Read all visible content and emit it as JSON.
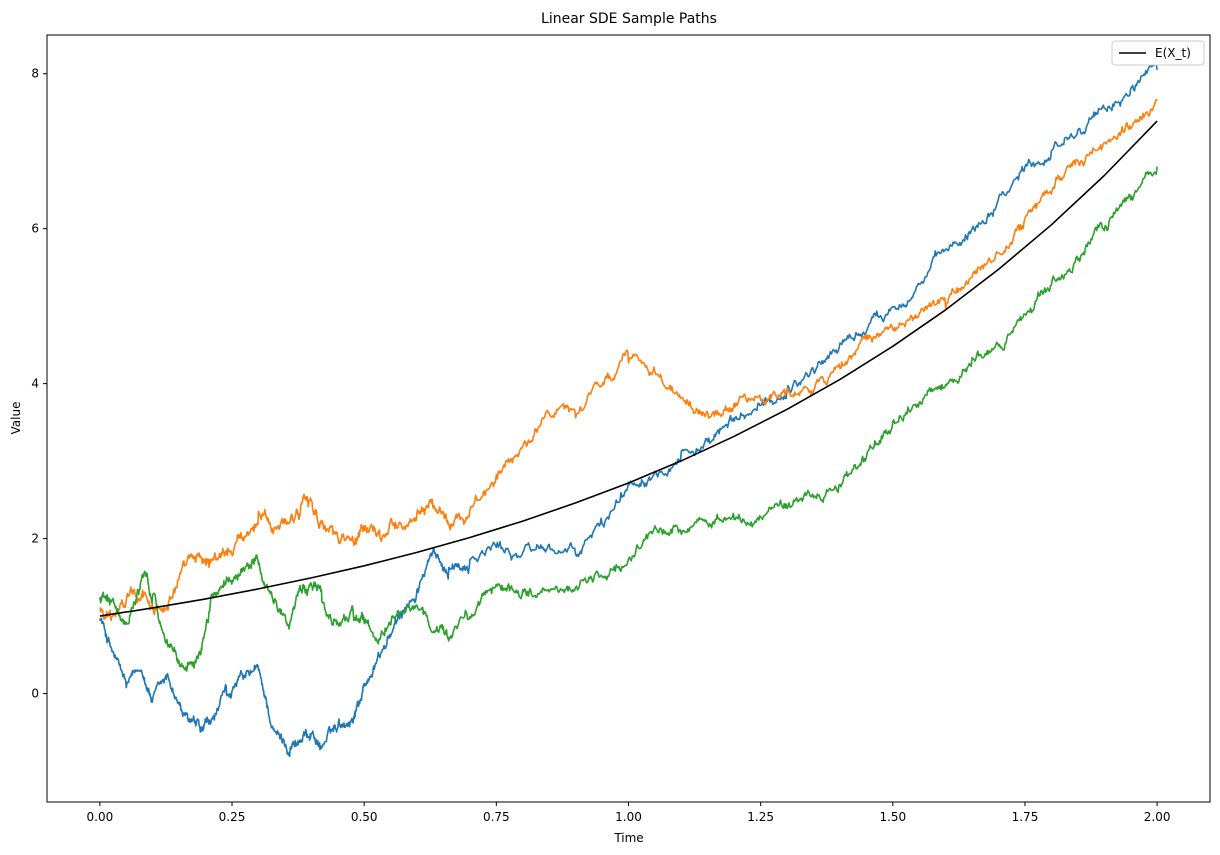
{
  "chart_data": {
    "type": "line",
    "title": "Linear SDE Sample Paths",
    "xlabel": "Time",
    "ylabel": "Value",
    "xlim": [
      -0.1,
      2.1
    ],
    "ylim": [
      -1.4,
      8.5
    ],
    "xticks": [
      0.0,
      0.25,
      0.5,
      0.75,
      1.0,
      1.25,
      1.5,
      1.75,
      2.0
    ],
    "xtick_labels": [
      "0.00",
      "0.25",
      "0.50",
      "0.75",
      "1.00",
      "1.25",
      "1.50",
      "1.75",
      "2.00"
    ],
    "yticks": [
      0,
      2,
      4,
      6,
      8
    ],
    "ytick_labels": [
      "0",
      "2",
      "4",
      "6",
      "8"
    ],
    "grid": false,
    "legend_position": "top-right",
    "series": [
      {
        "color": "#1f77b4",
        "style": "noisy",
        "x": [
          0.0,
          0.02,
          0.05,
          0.08,
          0.1,
          0.13,
          0.16,
          0.19,
          0.21,
          0.24,
          0.27,
          0.3,
          0.33,
          0.36,
          0.38,
          0.4,
          0.42,
          0.45,
          0.48,
          0.5,
          0.53,
          0.56,
          0.6,
          0.63,
          0.66,
          0.7,
          0.75,
          0.8,
          0.85,
          0.9,
          0.95,
          1.0,
          1.05,
          1.1,
          1.15,
          1.2,
          1.25,
          1.3,
          1.35,
          1.4,
          1.45,
          1.5,
          1.55,
          1.6,
          1.65,
          1.7,
          1.75,
          1.8,
          1.85,
          1.9,
          1.95,
          2.0
        ],
        "values": [
          1.0,
          0.6,
          0.1,
          0.3,
          -0.1,
          0.2,
          -0.3,
          -0.5,
          -0.4,
          0.0,
          0.2,
          0.3,
          -0.5,
          -0.7,
          -0.6,
          -0.5,
          -0.7,
          -0.4,
          -0.3,
          0.1,
          0.5,
          0.9,
          1.3,
          1.8,
          1.6,
          1.7,
          1.9,
          1.8,
          1.9,
          1.8,
          2.2,
          2.7,
          2.9,
          3.1,
          3.2,
          3.5,
          3.7,
          3.9,
          4.2,
          4.5,
          4.7,
          5.0,
          5.3,
          5.7,
          6.0,
          6.4,
          6.8,
          7.0,
          7.3,
          7.5,
          7.8,
          8.05
        ]
      },
      {
        "color": "#ff7f0e",
        "style": "noisy",
        "x": [
          0.0,
          0.02,
          0.05,
          0.08,
          0.1,
          0.13,
          0.16,
          0.19,
          0.21,
          0.24,
          0.27,
          0.3,
          0.33,
          0.36,
          0.38,
          0.4,
          0.42,
          0.45,
          0.48,
          0.5,
          0.53,
          0.56,
          0.6,
          0.63,
          0.66,
          0.7,
          0.75,
          0.8,
          0.85,
          0.9,
          0.95,
          1.0,
          1.05,
          1.1,
          1.15,
          1.2,
          1.25,
          1.3,
          1.35,
          1.4,
          1.45,
          1.5,
          1.55,
          1.6,
          1.65,
          1.7,
          1.75,
          1.8,
          1.85,
          1.9,
          1.95,
          2.0
        ],
        "values": [
          1.1,
          1.0,
          1.2,
          1.3,
          1.1,
          1.2,
          1.6,
          1.8,
          1.7,
          1.8,
          2.0,
          2.3,
          2.1,
          2.2,
          2.4,
          2.5,
          2.2,
          2.0,
          1.9,
          2.1,
          2.0,
          2.2,
          2.3,
          2.4,
          2.2,
          2.4,
          2.8,
          3.2,
          3.6,
          3.6,
          4.0,
          4.3,
          4.2,
          3.8,
          3.6,
          3.7,
          3.8,
          3.9,
          3.9,
          4.2,
          4.6,
          4.7,
          4.9,
          5.0,
          5.4,
          5.7,
          6.1,
          6.5,
          6.9,
          7.1,
          7.3,
          7.65
        ]
      },
      {
        "color": "#2ca02c",
        "style": "noisy",
        "x": [
          0.0,
          0.02,
          0.05,
          0.08,
          0.1,
          0.13,
          0.16,
          0.19,
          0.21,
          0.24,
          0.27,
          0.3,
          0.33,
          0.36,
          0.38,
          0.4,
          0.42,
          0.45,
          0.48,
          0.5,
          0.53,
          0.56,
          0.6,
          0.63,
          0.66,
          0.7,
          0.75,
          0.8,
          0.85,
          0.9,
          0.95,
          1.0,
          1.05,
          1.1,
          1.15,
          1.2,
          1.25,
          1.3,
          1.35,
          1.4,
          1.45,
          1.5,
          1.55,
          1.6,
          1.65,
          1.7,
          1.75,
          1.8,
          1.85,
          1.9,
          1.95,
          2.0
        ],
        "values": [
          1.2,
          1.2,
          0.9,
          1.5,
          1.3,
          0.6,
          0.3,
          0.5,
          1.2,
          1.5,
          1.6,
          1.7,
          1.2,
          0.9,
          1.3,
          1.4,
          1.2,
          0.9,
          1.0,
          0.9,
          0.7,
          1.0,
          1.1,
          0.8,
          0.7,
          1.0,
          1.4,
          1.3,
          1.3,
          1.4,
          1.5,
          1.7,
          2.1,
          2.1,
          2.2,
          2.3,
          2.3,
          2.4,
          2.5,
          2.7,
          3.1,
          3.5,
          3.8,
          4.0,
          4.3,
          4.5,
          4.9,
          5.3,
          5.6,
          6.0,
          6.4,
          6.8
        ]
      },
      {
        "name": "E(X_t)",
        "color": "#000000",
        "style": "smooth",
        "x": [
          0.0,
          0.1,
          0.2,
          0.3,
          0.4,
          0.5,
          0.6,
          0.7,
          0.8,
          0.9,
          1.0,
          1.1,
          1.2,
          1.3,
          1.4,
          1.5,
          1.6,
          1.7,
          1.8,
          1.9,
          2.0
        ],
        "values": [
          1.0,
          1.105,
          1.221,
          1.35,
          1.492,
          1.649,
          1.822,
          2.014,
          2.226,
          2.46,
          2.718,
          3.004,
          3.32,
          3.669,
          4.055,
          4.482,
          4.953,
          5.474,
          6.05,
          6.686,
          7.389
        ]
      }
    ]
  }
}
